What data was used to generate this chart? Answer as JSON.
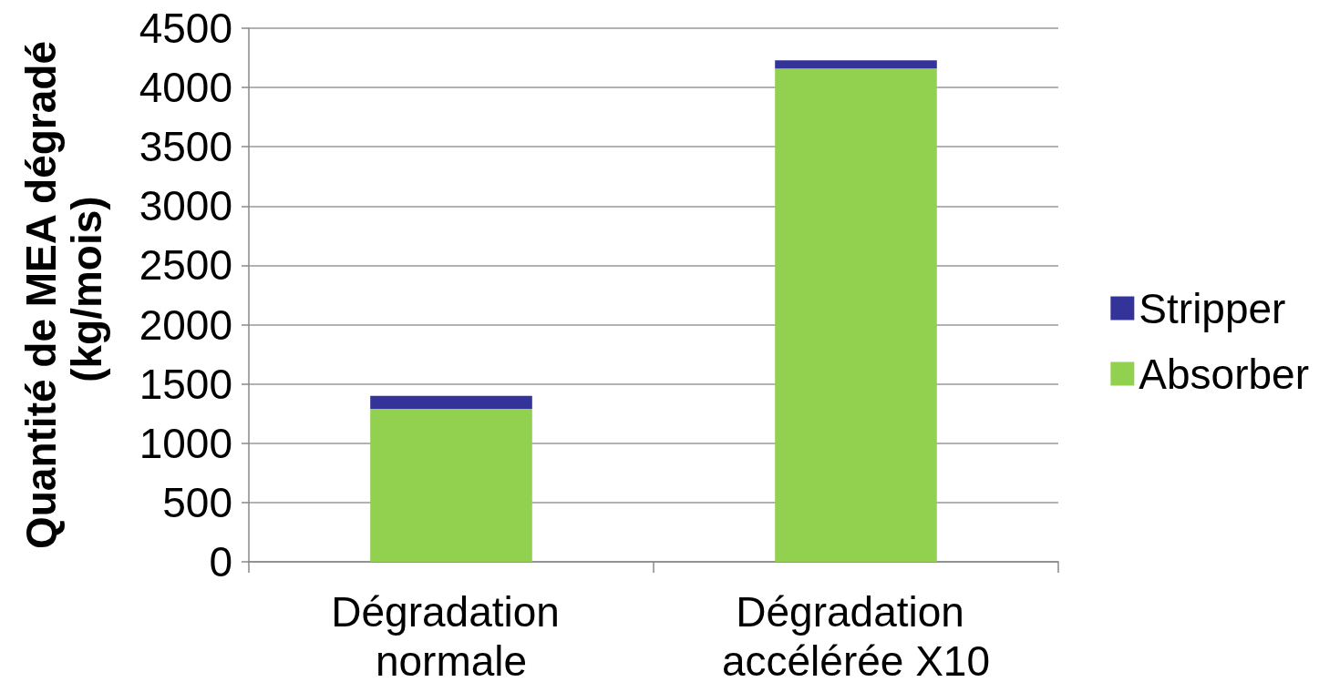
{
  "chart_data": {
    "type": "bar",
    "stacked": true,
    "ylabel": "Quantité de MEA dégradé (kg/mois)",
    "categories": [
      "Dégradation normale",
      "Dégradation accélérée X10"
    ],
    "series": [
      {
        "name": "Absorber",
        "color": "#92d050",
        "values": [
          1290,
          4160
        ]
      },
      {
        "name": "Stripper",
        "color": "#333399",
        "values": [
          110,
          70
        ]
      }
    ],
    "ylim": [
      0,
      4500
    ],
    "yticks": [
      0,
      500,
      1000,
      1500,
      2000,
      2500,
      3000,
      3500,
      4000,
      4500
    ],
    "grid": "y",
    "legend": "right"
  }
}
